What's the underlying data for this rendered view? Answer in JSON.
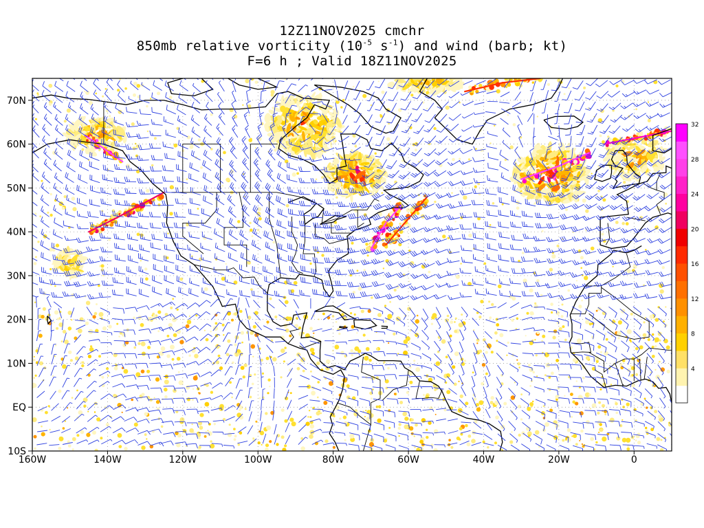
{
  "title": {
    "line1": "12Z11NOV2025 cmchr",
    "line2_pre": "850mb relative vorticity (10",
    "line2_exp1": "-5",
    "line2_mid": " s",
    "line2_exp2": "-1",
    "line2_post": ") and wind (barb; kt)",
    "line3": "F=6 h ; Valid 18Z11NOV2025"
  },
  "axes": {
    "lat_labels": [
      "70N",
      "60N",
      "50N",
      "40N",
      "30N",
      "20N",
      "10N",
      "EQ",
      "10S"
    ],
    "lat_values": [
      70,
      60,
      50,
      40,
      30,
      20,
      10,
      0,
      -10
    ],
    "lon_labels": [
      "160W",
      "140W",
      "120W",
      "100W",
      "80W",
      "60W",
      "40W",
      "20W",
      "0"
    ],
    "lon_values": [
      -160,
      -140,
      -120,
      -100,
      -80,
      -60,
      -40,
      -20,
      0
    ],
    "lat_range": [
      -10,
      75
    ],
    "lon_range": [
      -160,
      10
    ]
  },
  "colorbar": {
    "labels": [
      "4",
      "8",
      "12",
      "16",
      "20",
      "24",
      "28",
      "32"
    ],
    "colors": [
      "#ffffff",
      "#fff3b0",
      "#ffe066",
      "#ffd000",
      "#ffb000",
      "#ff9000",
      "#ff7000",
      "#ff5000",
      "#ff2a00",
      "#f00000",
      "#f00060",
      "#ff00a0",
      "#ff20c8",
      "#ff40e8",
      "#ff50ff",
      "#ff00ff"
    ],
    "levels_per_label": 2
  },
  "colors": {
    "barb": "#2b3fe0",
    "coast": "#000000",
    "grid": "#888888"
  },
  "features": [
    {
      "name": "low-north-atlantic",
      "lon": -21,
      "lat": 52
    },
    {
      "name": "low-hudson-bay",
      "lon": -89,
      "lat": 62
    },
    {
      "name": "low-labrador",
      "lon": -70,
      "lat": 52
    }
  ]
}
